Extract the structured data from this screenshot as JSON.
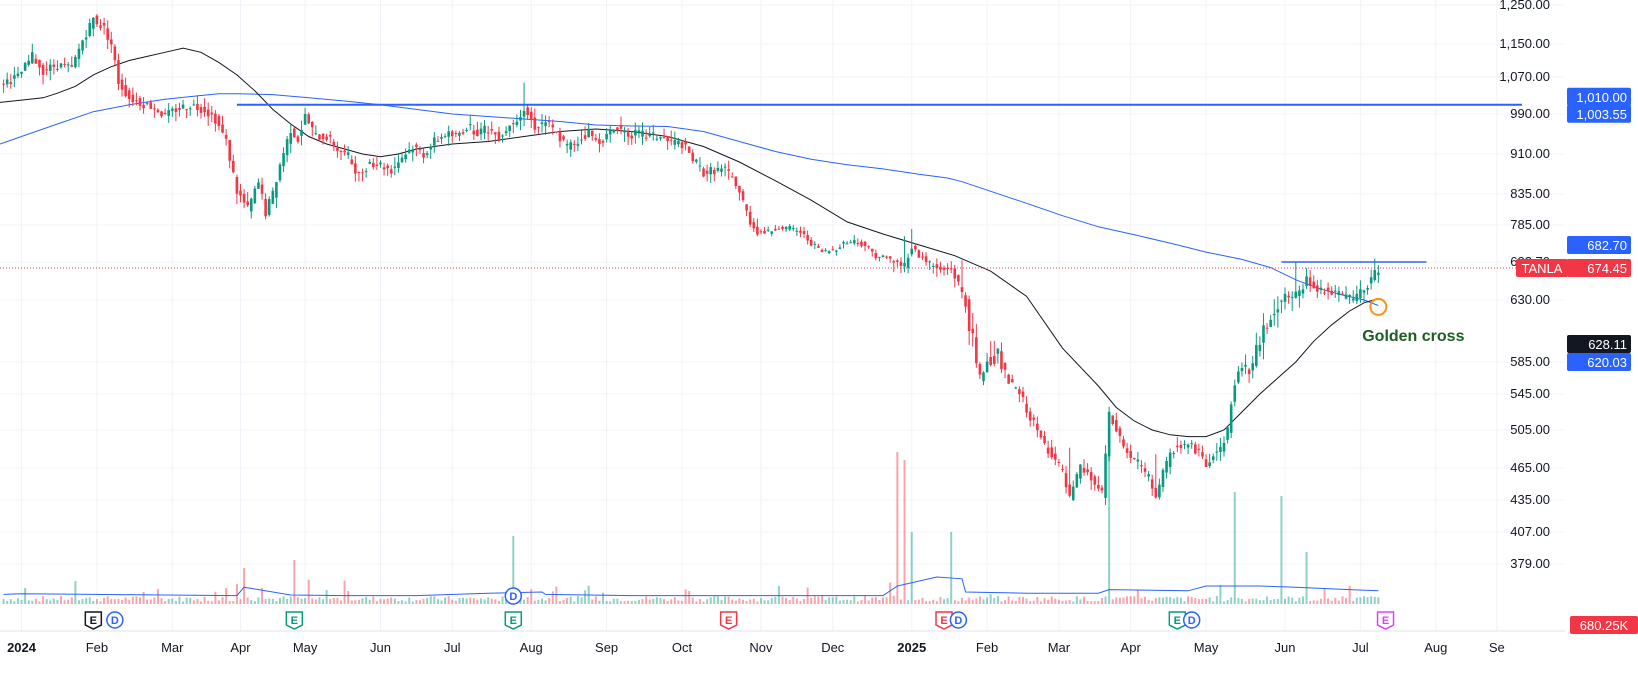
{
  "chart_data": {
    "type": "candlestick",
    "symbol": "TANLA",
    "last_price": "674.45",
    "volume_label": "680.25K",
    "ylim": [
      400,
      1250
    ],
    "y_ticks": [
      "1,250.00",
      "1,150.00",
      "1,070.00",
      "990.00",
      "910.00",
      "835.00",
      "785.00",
      "682.70",
      "630.00",
      "585.00",
      "545.00",
      "505.00",
      "465.00",
      "435.00",
      "407.00",
      "379.00"
    ],
    "y_tick_values": [
      1250,
      1150,
      1070,
      990,
      910,
      835,
      785,
      682.7,
      630,
      585,
      545,
      505,
      465,
      435,
      407,
      379
    ],
    "x_ticks": [
      {
        "label": "2024",
        "bold": true,
        "t": 0
      },
      {
        "label": "Feb",
        "t": 21
      },
      {
        "label": "Mar",
        "t": 42
      },
      {
        "label": "Apr",
        "t": 61
      },
      {
        "label": "May",
        "t": 79
      },
      {
        "label": "Jun",
        "t": 100
      },
      {
        "label": "Jul",
        "t": 120
      },
      {
        "label": "Aug",
        "t": 142
      },
      {
        "label": "Sep",
        "t": 163
      },
      {
        "label": "Oct",
        "t": 184
      },
      {
        "label": "Nov",
        "t": 206
      },
      {
        "label": "Dec",
        "t": 226
      },
      {
        "label": "2025",
        "bold": true,
        "t": 248
      },
      {
        "label": "Feb",
        "t": 269
      },
      {
        "label": "Mar",
        "t": 289
      },
      {
        "label": "Apr",
        "t": 309
      },
      {
        "label": "May",
        "t": 330
      },
      {
        "label": "Jun",
        "t": 352
      },
      {
        "label": "Jul",
        "t": 373
      },
      {
        "label": "Aug",
        "t": 394
      },
      {
        "label": "Se",
        "t": 411
      }
    ],
    "t_range": [
      -6,
      430
    ],
    "price_path": [
      [
        -5,
        1060
      ],
      [
        -1,
        1070
      ],
      [
        3,
        1120
      ],
      [
        6,
        1085
      ],
      [
        10,
        1100
      ],
      [
        14,
        1090
      ],
      [
        17,
        1160
      ],
      [
        20,
        1215
      ],
      [
        23,
        1190
      ],
      [
        25,
        1150
      ],
      [
        27,
        1060
      ],
      [
        30,
        1025
      ],
      [
        33,
        1015
      ],
      [
        37,
        1005
      ],
      [
        40,
        985
      ],
      [
        43,
        1000
      ],
      [
        47,
        1010
      ],
      [
        51,
        1000
      ],
      [
        54,
        980
      ],
      [
        57,
        935
      ],
      [
        60,
        840
      ],
      [
        63,
        810
      ],
      [
        66,
        855
      ],
      [
        68,
        805
      ],
      [
        70,
        835
      ],
      [
        72,
        890
      ],
      [
        75,
        960
      ],
      [
        77,
        940
      ],
      [
        79,
        985
      ],
      [
        82,
        945
      ],
      [
        85,
        945
      ],
      [
        88,
        920
      ],
      [
        91,
        905
      ],
      [
        94,
        870
      ],
      [
        97,
        895
      ],
      [
        100,
        890
      ],
      [
        103,
        880
      ],
      [
        106,
        905
      ],
      [
        109,
        925
      ],
      [
        112,
        910
      ],
      [
        115,
        935
      ],
      [
        118,
        950
      ],
      [
        121,
        945
      ],
      [
        124,
        965
      ],
      [
        127,
        955
      ],
      [
        130,
        960
      ],
      [
        133,
        945
      ],
      [
        137,
        975
      ],
      [
        140,
        1000
      ],
      [
        143,
        965
      ],
      [
        146,
        975
      ],
      [
        149,
        950
      ],
      [
        152,
        925
      ],
      [
        155,
        935
      ],
      [
        158,
        955
      ],
      [
        160,
        935
      ],
      [
        163,
        945
      ],
      [
        166,
        965
      ],
      [
        169,
        950
      ],
      [
        172,
        950
      ],
      [
        175,
        945
      ],
      [
        178,
        945
      ],
      [
        180,
        935
      ],
      [
        184,
        930
      ],
      [
        187,
        900
      ],
      [
        190,
        875
      ],
      [
        193,
        880
      ],
      [
        196,
        880
      ],
      [
        199,
        855
      ],
      [
        202,
        805
      ],
      [
        205,
        765
      ],
      [
        208,
        765
      ],
      [
        211,
        780
      ],
      [
        214,
        775
      ],
      [
        217,
        765
      ],
      [
        220,
        735
      ],
      [
        223,
        710
      ],
      [
        226,
        715
      ],
      [
        229,
        735
      ],
      [
        232,
        740
      ],
      [
        235,
        730
      ],
      [
        238,
        700
      ],
      [
        241,
        695
      ],
      [
        244,
        680
      ],
      [
        246,
        678
      ],
      [
        248,
        725
      ],
      [
        250,
        700
      ],
      [
        253,
        680
      ],
      [
        256,
        670
      ],
      [
        259,
        675
      ],
      [
        262,
        640
      ],
      [
        265,
        600
      ],
      [
        267,
        565
      ],
      [
        269,
        585
      ],
      [
        272,
        590
      ],
      [
        275,
        560
      ],
      [
        278,
        545
      ],
      [
        281,
        520
      ],
      [
        284,
        495
      ],
      [
        287,
        480
      ],
      [
        290,
        460
      ],
      [
        292,
        435
      ],
      [
        295,
        465
      ],
      [
        298,
        455
      ],
      [
        301,
        440
      ],
      [
        303,
        520
      ],
      [
        305,
        505
      ],
      [
        308,
        480
      ],
      [
        311,
        470
      ],
      [
        314,
        455
      ],
      [
        316,
        440
      ],
      [
        318,
        460
      ],
      [
        321,
        485
      ],
      [
        324,
        490
      ],
      [
        327,
        485
      ],
      [
        330,
        470
      ],
      [
        332,
        480
      ],
      [
        334,
        485
      ],
      [
        336,
        505
      ],
      [
        338,
        560
      ],
      [
        340,
        580
      ],
      [
        342,
        575
      ],
      [
        345,
        600
      ],
      [
        348,
        620
      ],
      [
        351,
        632
      ],
      [
        354,
        635
      ],
      [
        356,
        638
      ],
      [
        358,
        660
      ],
      [
        360,
        650
      ],
      [
        362,
        645
      ],
      [
        365,
        640
      ],
      [
        368,
        635
      ],
      [
        371,
        632
      ],
      [
        373,
        640
      ],
      [
        375,
        650
      ],
      [
        377,
        665
      ],
      [
        378,
        674
      ]
    ],
    "sma_black": [
      [
        -6,
        1015
      ],
      [
        0,
        1020
      ],
      [
        6,
        1025
      ],
      [
        10,
        1035
      ],
      [
        15,
        1050
      ],
      [
        20,
        1075
      ],
      [
        25,
        1095
      ],
      [
        30,
        1110
      ],
      [
        35,
        1120
      ],
      [
        40,
        1130
      ],
      [
        45,
        1140
      ],
      [
        50,
        1130
      ],
      [
        55,
        1105
      ],
      [
        60,
        1075
      ],
      [
        65,
        1040
      ],
      [
        70,
        1000
      ],
      [
        75,
        970
      ],
      [
        80,
        945
      ],
      [
        85,
        930
      ],
      [
        90,
        920
      ],
      [
        95,
        910
      ],
      [
        100,
        905
      ],
      [
        105,
        910
      ],
      [
        110,
        920
      ],
      [
        120,
        930
      ],
      [
        130,
        935
      ],
      [
        140,
        945
      ],
      [
        150,
        955
      ],
      [
        160,
        960
      ],
      [
        170,
        955
      ],
      [
        180,
        945
      ],
      [
        190,
        925
      ],
      [
        200,
        895
      ],
      [
        210,
        860
      ],
      [
        220,
        825
      ],
      [
        230,
        790
      ],
      [
        240,
        760
      ],
      [
        250,
        730
      ],
      [
        260,
        700
      ],
      [
        270,
        670
      ],
      [
        280,
        635
      ],
      [
        290,
        595
      ],
      [
        300,
        555
      ],
      [
        305,
        530
      ],
      [
        310,
        515
      ],
      [
        315,
        505
      ],
      [
        320,
        500
      ],
      [
        325,
        498
      ],
      [
        330,
        498
      ],
      [
        335,
        505
      ],
      [
        340,
        525
      ],
      [
        345,
        545
      ],
      [
        350,
        565
      ],
      [
        355,
        585
      ],
      [
        360,
        600
      ],
      [
        365,
        612
      ],
      [
        370,
        622
      ],
      [
        374,
        628
      ],
      [
        378,
        632
      ]
    ],
    "sma_blue": [
      [
        -6,
        930
      ],
      [
        0,
        945
      ],
      [
        10,
        970
      ],
      [
        20,
        995
      ],
      [
        30,
        1010
      ],
      [
        40,
        1022
      ],
      [
        50,
        1030
      ],
      [
        55,
        1034
      ],
      [
        60,
        1034
      ],
      [
        70,
        1032
      ],
      [
        80,
        1025
      ],
      [
        90,
        1018
      ],
      [
        100,
        1010
      ],
      [
        110,
        1000
      ],
      [
        120,
        990
      ],
      [
        130,
        985
      ],
      [
        140,
        980
      ],
      [
        150,
        975
      ],
      [
        160,
        968
      ],
      [
        170,
        966
      ],
      [
        180,
        965
      ],
      [
        190,
        955
      ],
      [
        200,
        935
      ],
      [
        210,
        915
      ],
      [
        220,
        900
      ],
      [
        230,
        890
      ],
      [
        240,
        882
      ],
      [
        250,
        872
      ],
      [
        258,
        865
      ],
      [
        262,
        858
      ],
      [
        270,
        840
      ],
      [
        280,
        820
      ],
      [
        290,
        800
      ],
      [
        300,
        780
      ],
      [
        310,
        758
      ],
      [
        320,
        735
      ],
      [
        330,
        710
      ],
      [
        340,
        690
      ],
      [
        348,
        675
      ],
      [
        355,
        658
      ],
      [
        362,
        645
      ],
      [
        368,
        637
      ],
      [
        374,
        630
      ],
      [
        378,
        626
      ]
    ],
    "volume_path": [
      [
        -5,
        0.16
      ],
      [
        0,
        0.17
      ],
      [
        20,
        0.16
      ],
      [
        40,
        0.15
      ],
      [
        60,
        0.14
      ],
      [
        62,
        0.28
      ],
      [
        75,
        0.15
      ],
      [
        90,
        0.14
      ],
      [
        110,
        0.14
      ],
      [
        130,
        0.18
      ],
      [
        145,
        0.2
      ],
      [
        146,
        0.16
      ],
      [
        170,
        0.14
      ],
      [
        200,
        0.14
      ],
      [
        240,
        0.14
      ],
      [
        244,
        0.3
      ],
      [
        255,
        0.45
      ],
      [
        262,
        0.42
      ],
      [
        263,
        0.2
      ],
      [
        280,
        0.18
      ],
      [
        300,
        0.18
      ],
      [
        303,
        0.24
      ],
      [
        325,
        0.22
      ],
      [
        330,
        0.3
      ],
      [
        345,
        0.3
      ],
      [
        355,
        0.28
      ],
      [
        370,
        0.24
      ],
      [
        378,
        0.22
      ]
    ],
    "resistance_line": {
      "value": 1010.0,
      "t_start": 60,
      "t_end": 418,
      "label": "1,010.00"
    },
    "level_line": {
      "value": 682.7,
      "t_start": 351,
      "t_end": 379,
      "label": "682.70"
    },
    "price_labels": [
      {
        "value": 1003.55,
        "label": "1,003.55",
        "color": "#2962ff"
      },
      {
        "value": 682.7,
        "label": "682.70",
        "color": "#2962ff",
        "offset": -17
      },
      {
        "value": 674.45,
        "label": "674.45",
        "color": "#f23645"
      },
      {
        "value": 628.11,
        "label": "628.11",
        "color": "#131722"
      },
      {
        "value": 620.03,
        "label": "620.03",
        "color": "#2962ff"
      }
    ],
    "events": [
      {
        "type": "E",
        "t": 20,
        "color": "#131722"
      },
      {
        "type": "D",
        "t": 26,
        "color": "#2962ff"
      },
      {
        "type": "E",
        "t": 76,
        "color": "#089981"
      },
      {
        "type": "E",
        "t": 137,
        "color": "#089981"
      },
      {
        "type": "D",
        "t": 137,
        "color": "#2962ff",
        "raised": true
      },
      {
        "type": "E",
        "t": 197,
        "color": "#f23645"
      },
      {
        "type": "E",
        "t": 257,
        "color": "#f23645"
      },
      {
        "type": "D",
        "t": 261,
        "color": "#2962ff"
      },
      {
        "type": "E",
        "t": 322,
        "color": "#089981"
      },
      {
        "type": "D",
        "t": 326,
        "color": "#2962ff"
      },
      {
        "type": "E",
        "t": 380,
        "color": "#e040fb"
      }
    ],
    "annotation": {
      "text": "Golden cross",
      "t": 378,
      "value": 625,
      "color": "#1b5e20",
      "marker_color": "#f7931a"
    },
    "legend": "none",
    "grid": true
  }
}
